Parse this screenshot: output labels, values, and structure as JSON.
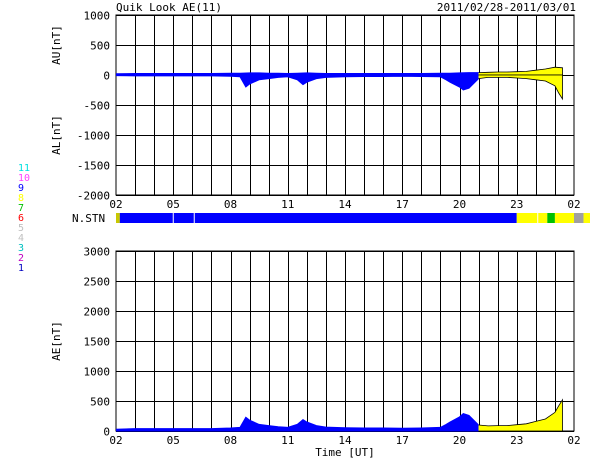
{
  "header": {
    "title": "Quik Look AE(11)",
    "date_range": "2011/02/28-2011/03/01"
  },
  "legend": [
    {
      "label": "11",
      "color": "#00e0e0"
    },
    {
      "label": "10",
      "color": "#ff40ff"
    },
    {
      "label": "9",
      "color": "#0000ff"
    },
    {
      "label": "8",
      "color": "#ffff00"
    },
    {
      "label": "7",
      "color": "#00c000"
    },
    {
      "label": "6",
      "color": "#ff0000"
    },
    {
      "label": "5",
      "color": "#c0c0c0"
    },
    {
      "label": "4",
      "color": "#c0c0c0"
    },
    {
      "label": "3",
      "color": "#00c0c0"
    },
    {
      "label": "2",
      "color": "#c000c0"
    },
    {
      "label": "1",
      "color": "#0000c0"
    }
  ],
  "colors": {
    "pre_21ut": "#0000ff",
    "post_21ut": "#ffff00",
    "grid": "#000000"
  },
  "station_bar": {
    "label": "N.STN",
    "segments": [
      {
        "from": 0.0,
        "to": 0.2,
        "color": "#c8c800"
      },
      {
        "from": 0.2,
        "to": 21.0,
        "color": "#0000ff"
      },
      {
        "from": 21.0,
        "to": 22.6,
        "color": "#ffff00"
      },
      {
        "from": 22.6,
        "to": 23.0,
        "color": "#00c000"
      },
      {
        "from": 23.0,
        "to": 24.0,
        "color": "#ffff00"
      },
      {
        "from": 24.0,
        "to": 24.5,
        "color": "#a0a0a0"
      },
      {
        "from": 24.5,
        "to": 25.2,
        "color": "#ffff00"
      }
    ],
    "separators": [
      3.0,
      4.1,
      22.1
    ]
  },
  "chart_data": [
    {
      "type": "area",
      "name": "AU/AL panel",
      "ylabel_top": "AU[nT]",
      "ylabel_bottom": "AL[nT]",
      "xlabel": "",
      "xlim": [
        2,
        26
      ],
      "ylim": [
        -2000,
        1000
      ],
      "yticks": [
        1000,
        500,
        0,
        -500,
        -1000,
        -1500,
        -2000
      ],
      "xtick_labels": [
        "02",
        "05",
        "08",
        "11",
        "14",
        "17",
        "20",
        "23",
        "02"
      ],
      "grid": true,
      "series": [
        {
          "name": "AU",
          "x": [
            2,
            3,
            4,
            5,
            6,
            7,
            8,
            8.5,
            9,
            9.5,
            10,
            10.5,
            11,
            11.5,
            12,
            12.5,
            13,
            14,
            15,
            16,
            17,
            18,
            19,
            19.5,
            20,
            20.5,
            21,
            21.5,
            22,
            22.5,
            23,
            23.5,
            24,
            24.5,
            25,
            25.4
          ],
          "y": [
            20,
            25,
            25,
            25,
            25,
            25,
            30,
            30,
            35,
            35,
            30,
            30,
            25,
            30,
            35,
            30,
            25,
            25,
            25,
            25,
            25,
            25,
            30,
            30,
            35,
            40,
            40,
            45,
            50,
            50,
            55,
            60,
            80,
            100,
            130,
            120
          ]
        },
        {
          "name": "AL",
          "x": [
            2,
            3,
            4,
            5,
            6,
            7,
            8,
            8.5,
            8.8,
            9,
            9.5,
            10,
            10.5,
            11,
            11.5,
            11.8,
            12,
            12.5,
            13,
            14,
            15,
            16,
            17,
            18,
            19,
            19.3,
            19.5,
            20,
            20.2,
            20.5,
            21,
            21.5,
            22,
            22.5,
            23,
            23.5,
            24,
            24.5,
            25,
            25.2,
            25.4
          ],
          "y": [
            -10,
            -15,
            -15,
            -15,
            -15,
            -15,
            -20,
            -30,
            -200,
            -150,
            -80,
            -60,
            -40,
            -30,
            -80,
            -160,
            -120,
            -60,
            -40,
            -30,
            -25,
            -25,
            -20,
            -25,
            -30,
            -80,
            -120,
            -200,
            -250,
            -220,
            -60,
            -40,
            -40,
            -40,
            -50,
            -60,
            -80,
            -100,
            -180,
            -300,
            -400
          ]
        }
      ]
    },
    {
      "type": "area",
      "name": "AE panel",
      "ylabel": "AE[nT]",
      "xlabel": "Time [UT]",
      "xlim": [
        2,
        26
      ],
      "ylim": [
        0,
        3000
      ],
      "yticks": [
        3000,
        2500,
        2000,
        1500,
        1000,
        500,
        0
      ],
      "xtick_labels": [
        "02",
        "05",
        "08",
        "11",
        "14",
        "17",
        "20",
        "23",
        "02"
      ],
      "grid": true,
      "series": [
        {
          "name": "AE",
          "x": [
            2,
            3,
            4,
            5,
            6,
            7,
            8,
            8.5,
            8.8,
            9,
            9.5,
            10,
            10.5,
            11,
            11.5,
            11.8,
            12,
            12.5,
            13,
            14,
            15,
            16,
            17,
            18,
            19,
            19.3,
            19.5,
            20,
            20.2,
            20.5,
            21,
            21.5,
            22,
            22.5,
            23,
            23.5,
            24,
            24.5,
            25,
            25.2,
            25.4
          ],
          "y": [
            30,
            40,
            40,
            40,
            40,
            40,
            50,
            60,
            230,
            180,
            110,
            90,
            70,
            60,
            110,
            190,
            150,
            90,
            65,
            55,
            50,
            50,
            45,
            50,
            60,
            110,
            150,
            235,
            290,
            260,
            100,
            85,
            90,
            90,
            105,
            120,
            160,
            200,
            310,
            420,
            520
          ]
        }
      ]
    }
  ]
}
